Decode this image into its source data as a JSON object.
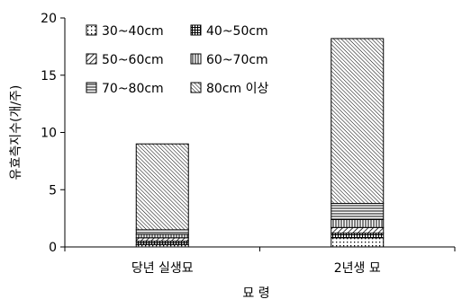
{
  "chart_data": {
    "type": "bar",
    "stacked": true,
    "categories": [
      "당년 실생묘",
      "2년생 묘"
    ],
    "series": [
      {
        "name": "30~40cm",
        "values": [
          0.2,
          0.8
        ],
        "pattern": "dots"
      },
      {
        "name": "40~50cm",
        "values": [
          0.3,
          0.4
        ],
        "pattern": "grid"
      },
      {
        "name": "50~60cm",
        "values": [
          0.3,
          0.5
        ],
        "pattern": "diag"
      },
      {
        "name": "60~70cm",
        "values": [
          0.3,
          0.7
        ],
        "pattern": "vert"
      },
      {
        "name": "70~80cm",
        "values": [
          0.4,
          1.4
        ],
        "pattern": "horiz"
      },
      {
        "name": "80cm 이상",
        "values": [
          7.5,
          14.4
        ],
        "pattern": "diag-dense"
      }
    ],
    "xlabel": "묘  령",
    "ylabel": "유효측지수(개/주)",
    "ylim": [
      0,
      20
    ],
    "yticks": [
      0,
      5,
      10,
      15,
      20
    ],
    "grid": false,
    "legend_position": "top-left"
  }
}
